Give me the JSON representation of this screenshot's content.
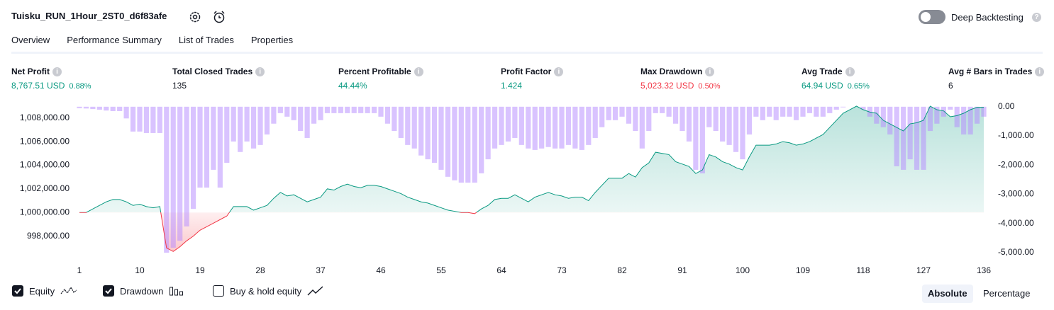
{
  "header": {
    "title": "Tuisku_RUN_1Hour_2ST0_d6f83afe",
    "deep_backtesting": "Deep Backtesting",
    "deep_backtesting_on": false
  },
  "tabs": {
    "items": [
      "Overview",
      "Performance Summary",
      "List of Trades",
      "Properties"
    ],
    "active": 0
  },
  "metrics": [
    {
      "label": "Net Profit",
      "value": "8,767.51 USD",
      "percent": "0.88%",
      "tone": "positive"
    },
    {
      "label": "Total Closed Trades",
      "value": "135",
      "tone": "neutral"
    },
    {
      "label": "Percent Profitable",
      "value": "44.44%",
      "tone": "positive"
    },
    {
      "label": "Profit Factor",
      "value": "1.424",
      "tone": "positive"
    },
    {
      "label": "Max Drawdown",
      "value": "5,023.32 USD",
      "percent": "0.50%",
      "tone": "negative"
    },
    {
      "label": "Avg Trade",
      "value": "64.94 USD",
      "percent": "0.65%",
      "tone": "positive"
    },
    {
      "label": "Avg # Bars in Trades",
      "value": "6",
      "tone": "neutral"
    }
  ],
  "chart_data": {
    "type": "combo",
    "x": [
      1,
      2,
      3,
      4,
      5,
      6,
      7,
      8,
      9,
      10,
      11,
      12,
      13,
      14,
      15,
      16,
      17,
      18,
      19,
      20,
      21,
      22,
      23,
      24,
      25,
      26,
      27,
      28,
      29,
      30,
      31,
      32,
      33,
      34,
      35,
      36,
      37,
      38,
      39,
      40,
      41,
      42,
      43,
      44,
      45,
      46,
      47,
      48,
      49,
      50,
      51,
      52,
      53,
      54,
      55,
      56,
      57,
      58,
      59,
      60,
      61,
      62,
      63,
      64,
      65,
      66,
      67,
      68,
      69,
      70,
      71,
      72,
      73,
      74,
      75,
      76,
      77,
      78,
      79,
      80,
      81,
      82,
      83,
      84,
      85,
      86,
      87,
      88,
      89,
      90,
      91,
      92,
      93,
      94,
      95,
      96,
      97,
      98,
      99,
      100,
      101,
      102,
      103,
      104,
      105,
      106,
      107,
      108,
      109,
      110,
      111,
      112,
      113,
      114,
      115,
      116,
      117,
      118,
      119,
      120,
      121,
      122,
      123,
      124,
      125,
      126,
      127,
      128,
      129,
      130,
      131,
      132,
      133,
      134,
      135,
      136
    ],
    "xlim": [
      1,
      136
    ],
    "xticks": [
      1,
      10,
      19,
      28,
      37,
      46,
      55,
      64,
      73,
      82,
      91,
      100,
      109,
      118,
      127,
      136
    ],
    "ylim": [
      996300,
      1009000
    ],
    "yticks": [
      {
        "value": 998000,
        "label": "998,000.00"
      },
      {
        "value": 1000000,
        "label": "1,000,000.00"
      },
      {
        "value": 1002000,
        "label": "1,002,000.00"
      },
      {
        "value": 1004000,
        "label": "1,004,000.00"
      },
      {
        "value": 1006000,
        "label": "1,006,000.00"
      },
      {
        "value": 1008000,
        "label": "1,008,000.00"
      }
    ],
    "y2lim": [
      -5120,
      20
    ],
    "y2ticks": [
      {
        "value": 0,
        "label": "0.00"
      },
      {
        "value": -1000,
        "label": "-1,000.00"
      },
      {
        "value": -2000,
        "label": "-2,000.00"
      },
      {
        "value": -3000,
        "label": "-3,000.00"
      },
      {
        "value": -4000,
        "label": "-4,000.00"
      },
      {
        "value": -5000,
        "label": "-5,000.00"
      }
    ],
    "grid": false,
    "series": [
      {
        "name": "Equity",
        "type": "line",
        "color": "#089981",
        "negative_color": "#f23645",
        "visible": true,
        "values": [
          1000000,
          1000000,
          1000300,
          1000600,
          1000900,
          1001100,
          1001100,
          1000900,
          1000600,
          1000700,
          1000500,
          1000400,
          1000500,
          997000,
          996700,
          997100,
          997600,
          998000,
          998500,
          998800,
          999100,
          999400,
          999700,
          1000500,
          1000500,
          1000500,
          1000200,
          1000400,
          1000600,
          1001200,
          1001700,
          1001400,
          1001500,
          1001200,
          1000900,
          1001100,
          1001300,
          1002000,
          1001900,
          1002200,
          1002400,
          1002200,
          1002100,
          1002300,
          1002300,
          1002200,
          1002000,
          1001800,
          1001600,
          1001300,
          1001100,
          1000900,
          1000800,
          1000600,
          1000400,
          1000200,
          1000100,
          1000000,
          1000000,
          999900,
          1000300,
          1000600,
          1001100,
          1001200,
          1001200,
          1001500,
          1001200,
          1000900,
          1001300,
          1001500,
          1001700,
          1001500,
          1001400,
          1001200,
          1001300,
          1001300,
          1001000,
          1001700,
          1002300,
          1002900,
          1002900,
          1002900,
          1003300,
          1003000,
          1003800,
          1004200,
          1005100,
          1005000,
          1004900,
          1004300,
          1004100,
          1003900,
          1003300,
          1003600,
          1004900,
          1004700,
          1004300,
          1004100,
          1003800,
          1003600,
          1004700,
          1005700,
          1005700,
          1005700,
          1005800,
          1006000,
          1005900,
          1005700,
          1005800,
          1006000,
          1006300,
          1006600,
          1007200,
          1007800,
          1008400,
          1008700,
          1009000,
          1008700,
          1008500,
          1008400,
          1007800,
          1007500,
          1007200,
          1006900,
          1007500,
          1007600,
          1007800,
          1009000,
          1008700,
          1008600,
          1008100,
          1008200,
          1008400,
          1008700,
          1008900,
          1008900
        ]
      },
      {
        "name": "Drawdown",
        "type": "bar",
        "axis": "y2",
        "color": "#b388ff",
        "visible": true,
        "values": [
          -50,
          -60,
          -80,
          -100,
          -130,
          -150,
          -150,
          -400,
          -850,
          -850,
          -900,
          -900,
          -900,
          -5000,
          -4830,
          -4590,
          -4100,
          -3500,
          -2770,
          -2770,
          -2160,
          -2770,
          -1920,
          -1190,
          -1550,
          -1190,
          -1430,
          -1310,
          -950,
          -580,
          -220,
          -340,
          -460,
          -830,
          -1070,
          -580,
          -460,
          -220,
          -220,
          -220,
          -220,
          -220,
          -220,
          -220,
          -220,
          -340,
          -580,
          -830,
          -1070,
          -1310,
          -1430,
          -1670,
          -1800,
          -1920,
          -2160,
          -2400,
          -2520,
          -2600,
          -2600,
          -2600,
          -2280,
          -1800,
          -1430,
          -1310,
          -1190,
          -1070,
          -1310,
          -1430,
          -1480,
          -1430,
          -1380,
          -1430,
          -1430,
          -1310,
          -1430,
          -1480,
          -1310,
          -1070,
          -700,
          -460,
          -460,
          -340,
          -580,
          -830,
          -1430,
          -830,
          -220,
          -220,
          -340,
          -580,
          -830,
          -1190,
          -2160,
          -2280,
          -700,
          -830,
          -1190,
          -1310,
          -1550,
          -1800,
          -950,
          -340,
          -460,
          -340,
          -460,
          -340,
          -340,
          -460,
          -340,
          -220,
          -340,
          -340,
          -220,
          -100,
          -20,
          0,
          0,
          -100,
          -340,
          -580,
          -700,
          -950,
          -2040,
          -2160,
          -1800,
          -2160,
          -2160,
          -830,
          -580,
          -340,
          -100,
          -700,
          -950,
          -950,
          -580,
          -340
        ]
      }
    ],
    "buy_hold": {
      "name": "Buy & hold equity",
      "visible": false
    },
    "scale_options": [
      "Absolute",
      "Percentage"
    ],
    "scale_selected": 0
  }
}
